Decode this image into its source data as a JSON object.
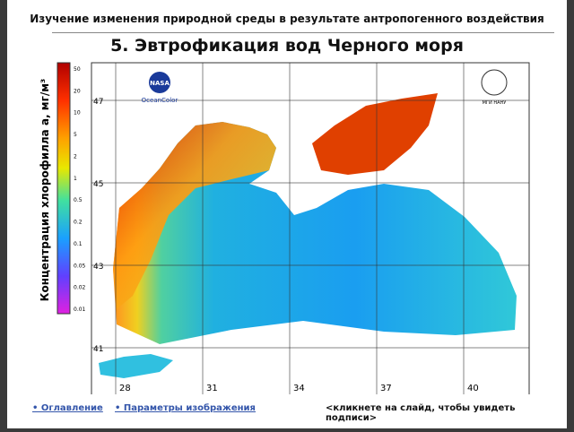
{
  "header": {
    "title": "Изучение изменения природной среды в результате антропогенного воздействия"
  },
  "slide": {
    "title": "5. Эвтрофикация вод Черного моря"
  },
  "colorbar": {
    "label": "Концентрация хлорофилла a, мг/м³",
    "ticks": [
      "50",
      "20",
      "10",
      "5",
      "2",
      "1",
      "0.5",
      "0.2",
      "0.1",
      "0.05",
      "0.02",
      "0.01"
    ]
  },
  "map": {
    "latitudes": [
      "47",
      "45",
      "43",
      "41"
    ],
    "longitudes": [
      "28",
      "31",
      "34",
      "37",
      "40"
    ],
    "logos": {
      "nasa": "NASA",
      "oceancolor": "OceanColor",
      "institute": "МГИ НАНУ"
    }
  },
  "footer": {
    "links": [
      "• Оглавление",
      "• Параметры изображения"
    ],
    "hint": "<кликнете на слайд, чтобы увидеть подписи>"
  }
}
